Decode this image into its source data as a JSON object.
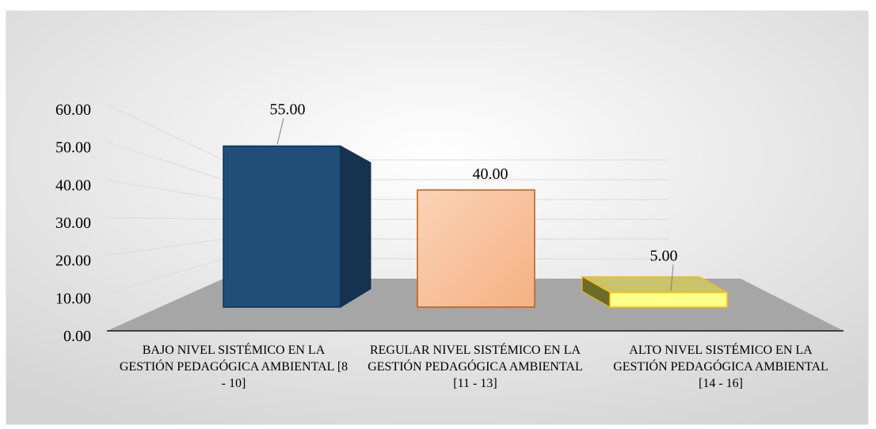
{
  "chart_data": {
    "type": "bar",
    "categories": [
      "BAJO NIVEL SISTÉMICO EN LA GESTIÓN PEDAGÓGICA AMBIENTAL [8 - 10]",
      "REGULAR NIVEL SISTÉMICO EN LA GESTIÓN PEDAGÓGICA AMBIENTAL [11 - 13]",
      "ALTO NIVEL SISTÉMICO EN LA GESTIÓN PEDAGÓGICA AMBIENTAL [14 - 16]"
    ],
    "values": [
      55,
      40,
      5
    ],
    "value_labels": [
      "55.00",
      "40.00",
      "5.00"
    ],
    "colors": [
      "#1f4e79",
      "#f8c4a0",
      "#ffff8c"
    ],
    "ylim": [
      0,
      60
    ],
    "yticks": [
      {
        "value": 0,
        "label": "0.00"
      },
      {
        "value": 10,
        "label": "10.00"
      },
      {
        "value": 20,
        "label": "20.00"
      },
      {
        "value": 30,
        "label": "30.00"
      },
      {
        "value": 40,
        "label": "40.00"
      },
      {
        "value": 50,
        "label": "50.00"
      },
      {
        "value": 60,
        "label": "60.00"
      }
    ],
    "grid": true
  }
}
